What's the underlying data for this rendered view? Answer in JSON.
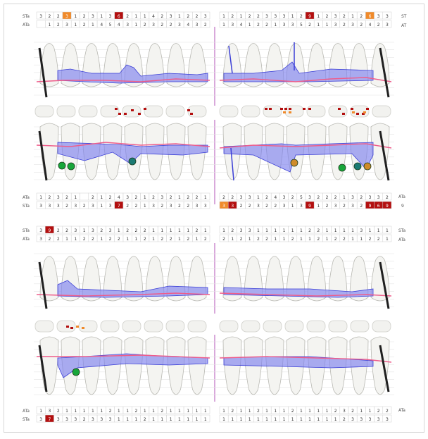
{
  "row_labels": {
    "st": "ST­a",
    "at": "AT­a"
  },
  "colors": {
    "red": "#b30f0f",
    "orange": "#f08a2a",
    "blue_fill": "#7f82ee",
    "blue_line": "#3b3fd6",
    "pink_line": "#ee5d8b",
    "implant_green": "#18a63a",
    "implant_teal": "#1b7a73",
    "implant_orange": "#cf8b2a",
    "midline": "#d9a9db",
    "bone_line": "#202020"
  },
  "sections": [
    {
      "id": "maxilla-upper",
      "top_right_label": "ST",
      "top_right_label2": "AT",
      "bottom_right_label": "",
      "st_left": [
        "3",
        "2",
        "2",
        "3",
        "1",
        "2",
        "3",
        "1",
        "3",
        "6",
        "2",
        "1",
        "1",
        "4",
        "2",
        "3",
        "1",
        "2",
        "2",
        "3"
      ],
      "st_right": [
        "1",
        "2",
        "1",
        "2",
        "2",
        "3",
        "3",
        "3",
        "1",
        "2",
        "9",
        "1",
        "2",
        "3",
        "2",
        "1",
        "2",
        "6",
        "3",
        "3"
      ],
      "at_left": [
        "",
        "1",
        "2",
        "3",
        "1",
        "2",
        "1",
        "4",
        "5",
        "4",
        "3",
        "1",
        "2",
        "3",
        "2",
        "2",
        "3",
        "4",
        "3",
        "2"
      ],
      "at_right": [
        "1",
        "3",
        "4",
        "1",
        "2",
        "2",
        "1",
        "3",
        "3",
        "5",
        "2",
        "1",
        "1",
        "3",
        "2",
        "3",
        "2",
        "4",
        "2",
        "3"
      ],
      "red_left": [
        9
      ],
      "orange_left": [
        3
      ],
      "red_right": [
        10
      ],
      "orange_right": [
        17
      ]
    },
    {
      "id": "mandible-upper",
      "st_left": [
        "3",
        "3",
        "3",
        "2",
        "3",
        "2",
        "3",
        "1",
        "3",
        "7",
        "2",
        "2",
        "1",
        "3",
        "2",
        "3",
        "2",
        "2",
        "3",
        "3"
      ],
      "st_right": [
        "3",
        "3",
        "2",
        "2",
        "3",
        "2",
        "2",
        "3",
        "1",
        "3",
        "9",
        "1",
        "2",
        "3",
        "2",
        "3",
        "2",
        "9",
        "6",
        "9"
      ],
      "at_left": [
        "1",
        "2",
        "3",
        "2",
        "1",
        "",
        "2",
        "1",
        "2",
        "4",
        "3",
        "2",
        "1",
        "2",
        "3",
        "2",
        "1",
        "2",
        "2",
        "1"
      ],
      "at_right": [
        "2",
        "2",
        "3",
        "3",
        "1",
        "2",
        "4",
        "3",
        "2",
        "5",
        "3",
        "2",
        "2",
        "2",
        "1",
        "3",
        "2",
        "3",
        "3",
        "2"
      ],
      "red_left": [
        9
      ],
      "red_right": [
        1,
        10,
        17,
        18,
        19
      ],
      "orange_right": [
        0
      ],
      "left_tail": "ST­a",
      "right_tail": "9"
    },
    {
      "id": "maxilla-lower",
      "st_left": [
        "3",
        "9",
        "2",
        "2",
        "3",
        "1",
        "3",
        "2",
        "3",
        "1",
        "2",
        "2",
        "2",
        "1",
        "1",
        "1",
        "1",
        "1",
        "2",
        "1"
      ],
      "st_right": [
        "1",
        "2",
        "3",
        "3",
        "1",
        "1",
        "1",
        "1",
        "1",
        "1",
        "2",
        "2",
        "1",
        "1",
        "1",
        "1",
        "3",
        "1",
        "1",
        "1"
      ],
      "at_left": [
        "3",
        "2",
        "2",
        "1",
        "1",
        "2",
        "2",
        "1",
        "2",
        "2",
        "1",
        "1",
        "2",
        "1",
        "2",
        "2",
        "1",
        "2",
        "1",
        "2"
      ],
      "at_right": [
        "2",
        "1",
        "2",
        "1",
        "2",
        "2",
        "1",
        "1",
        "2",
        "1",
        "1",
        "2",
        "1",
        "2",
        "2",
        "1",
        "1",
        "2",
        "2",
        "1"
      ],
      "red_left": [
        1
      ]
    },
    {
      "id": "mandible-lower",
      "st_left": [
        "3",
        "7",
        "3",
        "3",
        "3",
        "2",
        "3",
        "3",
        "3",
        "1",
        "1",
        "1",
        "2",
        "1",
        "1",
        "1",
        "1",
        "1",
        "1",
        "1"
      ],
      "st_right": [
        "1",
        "1",
        "1",
        "1",
        "1",
        "1",
        "1",
        "1",
        "1",
        "1",
        "1",
        "1",
        "1",
        "1",
        "2",
        "3",
        "3",
        "3",
        "3",
        "3"
      ],
      "at_left": [
        "1",
        "3",
        "2",
        "1",
        "1",
        "1",
        "1",
        "1",
        "2",
        "1",
        "1",
        "2",
        "1",
        "1",
        "2",
        "1",
        "1",
        "1",
        "1",
        "1"
      ],
      "at_right": [
        "1",
        "2",
        "1",
        "1",
        "2",
        "1",
        "1",
        "1",
        "2",
        "1",
        "1",
        "1",
        "1",
        "2",
        "3",
        "2",
        "1",
        "1",
        "2",
        "2"
      ],
      "red_left": [
        1
      ]
    }
  ],
  "lesion_markers": {
    "row1": [
      {
        "side": "left",
        "tooth": 4,
        "count": 2
      },
      {
        "side": "left",
        "tooth": 5,
        "count": 2
      },
      {
        "side": "right",
        "tooth": 2,
        "count": 3
      },
      {
        "side": "right",
        "tooth": 3,
        "count": 2
      },
      {
        "side": "right",
        "tooth": 4,
        "count": 2
      },
      {
        "side": "right",
        "tooth": 5,
        "count": 3
      }
    ],
    "row2": [
      {
        "side": "left",
        "tooth": 1,
        "count": 2
      }
    ]
  },
  "implants": [
    {
      "jaw": "upper-mandible",
      "side": "left",
      "tooth": 1,
      "color": "implant_green"
    },
    {
      "jaw": "upper-mandible",
      "side": "left",
      "tooth": 1.5,
      "color": "implant_green"
    },
    {
      "jaw": "upper-mandible",
      "side": "left",
      "tooth": 4,
      "color": "implant_teal"
    },
    {
      "jaw": "upper-mandible",
      "side": "right",
      "tooth": 3,
      "color": "implant_orange"
    },
    {
      "jaw": "upper-mandible",
      "side": "right",
      "tooth": 5,
      "color": "implant_green"
    },
    {
      "jaw": "upper-mandible",
      "side": "right",
      "tooth": 6,
      "color": "implant_teal"
    },
    {
      "jaw": "upper-mandible",
      "side": "right",
      "tooth": 6.5,
      "color": "implant_orange"
    },
    {
      "jaw": "lower-mandible",
      "side": "left",
      "tooth": 1.5,
      "color": "implant_green"
    }
  ]
}
